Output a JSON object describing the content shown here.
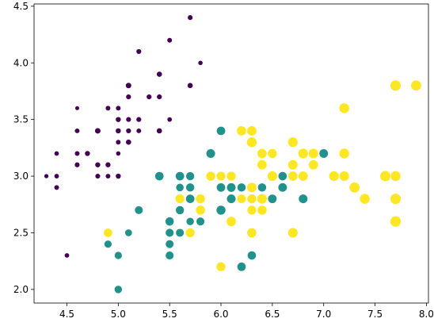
{
  "chart_data": {
    "type": "scatter",
    "title": "",
    "xlabel": "",
    "ylabel": "",
    "xlim": [
      4.18,
      8.02
    ],
    "ylim": [
      1.88,
      4.52
    ],
    "x_ticks": [
      "4.5",
      "5.0",
      "5.5",
      "6.0",
      "6.5",
      "7.0",
      "7.5",
      "8.0"
    ],
    "y_ticks": [
      "2.0",
      "2.5",
      "3.0",
      "3.5",
      "4.0",
      "4.5"
    ],
    "grid": false,
    "legend": "none",
    "colors": {
      "0": "#440154",
      "1": "#21918c",
      "2": "#fde725"
    },
    "size_scale": 3.2,
    "points": [
      [
        5.1,
        3.5,
        0,
        1.4
      ],
      [
        4.9,
        3.0,
        0,
        1.4
      ],
      [
        4.7,
        3.2,
        0,
        1.3
      ],
      [
        4.6,
        3.1,
        0,
        1.5
      ],
      [
        5.0,
        3.6,
        0,
        1.4
      ],
      [
        5.4,
        3.9,
        0,
        1.7
      ],
      [
        4.6,
        3.4,
        0,
        1.4
      ],
      [
        5.0,
        3.4,
        0,
        1.5
      ],
      [
        4.4,
        2.9,
        0,
        1.4
      ],
      [
        4.9,
        3.1,
        0,
        1.5
      ],
      [
        5.4,
        3.7,
        0,
        1.5
      ],
      [
        4.8,
        3.4,
        0,
        1.6
      ],
      [
        4.8,
        3.0,
        0,
        1.4
      ],
      [
        4.3,
        3.0,
        0,
        1.1
      ],
      [
        5.8,
        4.0,
        0,
        1.2
      ],
      [
        5.7,
        4.4,
        0,
        1.5
      ],
      [
        5.4,
        3.9,
        0,
        1.3
      ],
      [
        5.1,
        3.5,
        0,
        1.4
      ],
      [
        5.7,
        3.8,
        0,
        1.7
      ],
      [
        5.1,
        3.8,
        0,
        1.5
      ],
      [
        5.4,
        3.4,
        0,
        1.7
      ],
      [
        5.1,
        3.7,
        0,
        1.5
      ],
      [
        4.6,
        3.6,
        0,
        1.0
      ],
      [
        5.1,
        3.3,
        0,
        1.7
      ],
      [
        4.8,
        3.4,
        0,
        1.9
      ],
      [
        5.0,
        3.0,
        0,
        1.6
      ],
      [
        5.0,
        3.4,
        0,
        1.6
      ],
      [
        5.2,
        3.5,
        0,
        1.5
      ],
      [
        5.2,
        3.4,
        0,
        1.4
      ],
      [
        4.7,
        3.2,
        0,
        1.6
      ],
      [
        4.8,
        3.1,
        0,
        1.6
      ],
      [
        5.4,
        3.4,
        0,
        1.5
      ],
      [
        5.2,
        4.1,
        0,
        1.5
      ],
      [
        5.5,
        4.2,
        0,
        1.4
      ],
      [
        4.9,
        3.1,
        0,
        1.5
      ],
      [
        5.0,
        3.2,
        0,
        1.2
      ],
      [
        5.5,
        3.5,
        0,
        1.3
      ],
      [
        4.9,
        3.6,
        0,
        1.4
      ],
      [
        4.4,
        3.0,
        0,
        1.3
      ],
      [
        5.1,
        3.4,
        0,
        1.5
      ],
      [
        5.0,
        3.5,
        0,
        1.3
      ],
      [
        4.5,
        2.3,
        0,
        1.3
      ],
      [
        4.4,
        3.2,
        0,
        1.3
      ],
      [
        5.0,
        3.5,
        0,
        1.6
      ],
      [
        5.1,
        3.8,
        0,
        1.9
      ],
      [
        4.8,
        3.0,
        0,
        1.4
      ],
      [
        5.1,
        3.8,
        0,
        1.6
      ],
      [
        4.6,
        3.2,
        0,
        1.4
      ],
      [
        5.3,
        3.7,
        0,
        1.5
      ],
      [
        5.0,
        3.3,
        0,
        1.4
      ],
      [
        7.0,
        3.2,
        1,
        4.7
      ],
      [
        6.4,
        3.2,
        1,
        4.5
      ],
      [
        6.9,
        3.1,
        1,
        4.9
      ],
      [
        5.5,
        2.3,
        1,
        4.0
      ],
      [
        6.5,
        2.8,
        1,
        4.6
      ],
      [
        5.7,
        2.8,
        1,
        4.5
      ],
      [
        6.3,
        3.3,
        1,
        4.7
      ],
      [
        4.9,
        2.4,
        1,
        3.3
      ],
      [
        6.6,
        2.9,
        1,
        4.6
      ],
      [
        5.2,
        2.7,
        1,
        3.9
      ],
      [
        5.0,
        2.0,
        1,
        3.5
      ],
      [
        5.9,
        3.0,
        1,
        4.2
      ],
      [
        6.0,
        2.2,
        1,
        4.0
      ],
      [
        6.1,
        2.9,
        1,
        4.7
      ],
      [
        5.6,
        2.9,
        1,
        3.6
      ],
      [
        6.7,
        3.1,
        1,
        4.4
      ],
      [
        5.6,
        3.0,
        1,
        4.5
      ],
      [
        5.8,
        2.7,
        1,
        4.1
      ],
      [
        6.2,
        2.2,
        1,
        4.5
      ],
      [
        5.6,
        2.5,
        1,
        3.9
      ],
      [
        5.9,
        3.2,
        1,
        4.8
      ],
      [
        6.1,
        2.8,
        1,
        4.0
      ],
      [
        6.3,
        2.5,
        1,
        4.9
      ],
      [
        6.1,
        2.8,
        1,
        4.7
      ],
      [
        6.4,
        2.9,
        1,
        4.3
      ],
      [
        6.6,
        3.0,
        1,
        4.4
      ],
      [
        6.8,
        2.8,
        1,
        4.8
      ],
      [
        6.7,
        3.0,
        1,
        5.0
      ],
      [
        6.0,
        2.9,
        1,
        4.5
      ],
      [
        5.7,
        2.6,
        1,
        3.5
      ],
      [
        5.5,
        2.4,
        1,
        3.8
      ],
      [
        5.5,
        2.4,
        1,
        3.7
      ],
      [
        5.8,
        2.7,
        1,
        3.9
      ],
      [
        6.0,
        2.7,
        1,
        5.1
      ],
      [
        5.4,
        3.0,
        1,
        4.5
      ],
      [
        6.0,
        3.4,
        1,
        4.5
      ],
      [
        6.7,
        3.1,
        1,
        4.7
      ],
      [
        6.3,
        2.3,
        1,
        4.4
      ],
      [
        5.6,
        3.0,
        1,
        4.1
      ],
      [
        5.5,
        2.5,
        1,
        4.0
      ],
      [
        5.5,
        2.6,
        1,
        4.4
      ],
      [
        6.1,
        3.0,
        1,
        4.6
      ],
      [
        5.8,
        2.6,
        1,
        4.0
      ],
      [
        5.0,
        2.3,
        1,
        3.3
      ],
      [
        5.6,
        2.7,
        1,
        4.2
      ],
      [
        5.7,
        3.0,
        1,
        4.2
      ],
      [
        5.7,
        2.9,
        1,
        4.2
      ],
      [
        6.2,
        2.9,
        1,
        4.3
      ],
      [
        5.1,
        2.5,
        1,
        3.0
      ],
      [
        5.7,
        2.8,
        1,
        4.1
      ],
      [
        6.3,
        3.3,
        2,
        6.0
      ],
      [
        5.8,
        2.7,
        2,
        5.1
      ],
      [
        7.1,
        3.0,
        2,
        5.9
      ],
      [
        6.3,
        2.9,
        2,
        5.6
      ],
      [
        6.5,
        3.0,
        2,
        5.8
      ],
      [
        7.6,
        3.0,
        2,
        6.6
      ],
      [
        4.9,
        2.5,
        2,
        4.5
      ],
      [
        7.3,
        2.9,
        2,
        6.3
      ],
      [
        6.7,
        2.5,
        2,
        5.8
      ],
      [
        7.2,
        3.6,
        2,
        6.1
      ],
      [
        6.5,
        3.2,
        2,
        5.1
      ],
      [
        6.4,
        2.7,
        2,
        5.3
      ],
      [
        6.8,
        3.0,
        2,
        5.5
      ],
      [
        5.7,
        2.5,
        2,
        5.0
      ],
      [
        5.8,
        2.8,
        2,
        5.1
      ],
      [
        6.4,
        3.2,
        2,
        5.3
      ],
      [
        6.5,
        3.0,
        2,
        5.5
      ],
      [
        7.7,
        3.8,
        2,
        6.7
      ],
      [
        7.7,
        2.6,
        2,
        6.9
      ],
      [
        6.0,
        2.2,
        2,
        5.0
      ],
      [
        6.9,
        3.2,
        2,
        5.7
      ],
      [
        5.6,
        2.8,
        2,
        4.9
      ],
      [
        7.7,
        2.8,
        2,
        6.7
      ],
      [
        6.3,
        2.7,
        2,
        4.9
      ],
      [
        6.7,
        3.3,
        2,
        5.7
      ],
      [
        7.2,
        3.2,
        2,
        6.0
      ],
      [
        6.2,
        2.8,
        2,
        4.8
      ],
      [
        6.1,
        3.0,
        2,
        4.9
      ],
      [
        6.4,
        2.8,
        2,
        5.6
      ],
      [
        7.2,
        3.0,
        2,
        5.8
      ],
      [
        7.4,
        2.8,
        2,
        6.1
      ],
      [
        7.9,
        3.8,
        2,
        6.4
      ],
      [
        6.4,
        2.8,
        2,
        5.6
      ],
      [
        6.3,
        2.8,
        2,
        5.1
      ],
      [
        6.1,
        2.6,
        2,
        5.6
      ],
      [
        7.7,
        3.0,
        2,
        6.1
      ],
      [
        6.3,
        3.4,
        2,
        5.6
      ],
      [
        6.4,
        3.1,
        2,
        5.5
      ],
      [
        6.0,
        3.0,
        2,
        4.8
      ],
      [
        6.9,
        3.1,
        2,
        5.4
      ],
      [
        6.7,
        3.1,
        2,
        5.6
      ],
      [
        6.9,
        3.1,
        2,
        5.1
      ],
      [
        5.8,
        2.7,
        2,
        5.1
      ],
      [
        6.8,
        3.2,
        2,
        5.9
      ],
      [
        6.7,
        3.3,
        2,
        5.7
      ],
      [
        6.7,
        3.0,
        2,
        5.2
      ],
      [
        6.3,
        2.5,
        2,
        5.0
      ],
      [
        6.5,
        3.0,
        2,
        5.2
      ],
      [
        6.2,
        3.4,
        2,
        5.4
      ],
      [
        5.9,
        3.0,
        2,
        5.1
      ]
    ]
  }
}
